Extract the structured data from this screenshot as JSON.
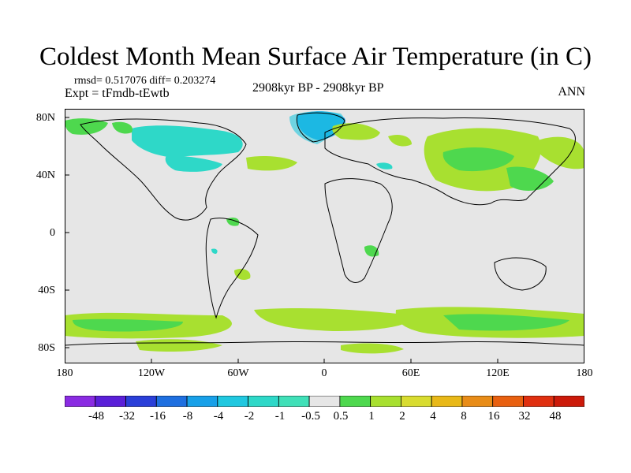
{
  "title": "Coldest Month Mean Surface Air Temperature (in C)",
  "stats": "rmsd= 0.517076 diff= 0.203274",
  "expt": "Expt = tFmdb-tEwtb",
  "period": "2908kyr BP - 2908kyr BP",
  "season": "ANN",
  "axes": {
    "y_ticks": [
      "80N",
      "40N",
      "0",
      "40S",
      "80S"
    ],
    "x_ticks": [
      "180",
      "120W",
      "60W",
      "0",
      "60E",
      "120E",
      "180"
    ]
  },
  "colorbar": {
    "labels": [
      "-48",
      "-32",
      "-16",
      "-8",
      "-4",
      "-2",
      "-1",
      "-0.5",
      "0.5",
      "1",
      "2",
      "4",
      "8",
      "16",
      "32",
      "48"
    ],
    "colors": [
      "#8a2be2",
      "#5a1fd8",
      "#2a3fd8",
      "#1e6fe0",
      "#18a0e8",
      "#20c8e0",
      "#2ed8c8",
      "#40e0b8",
      "#e6e6e6",
      "#4ed84e",
      "#a8e030",
      "#d8dc30",
      "#e8b818",
      "#e88c18",
      "#e86010",
      "#e03010",
      "#cc1a0a"
    ]
  },
  "colors": {
    "ocean_background": "#e6e6e6",
    "positive_anomaly": "#a8e030",
    "strong_positive": "#4ed84e",
    "negative_anomaly": "#2ed8c8",
    "strong_negative": "#18a0e8"
  }
}
